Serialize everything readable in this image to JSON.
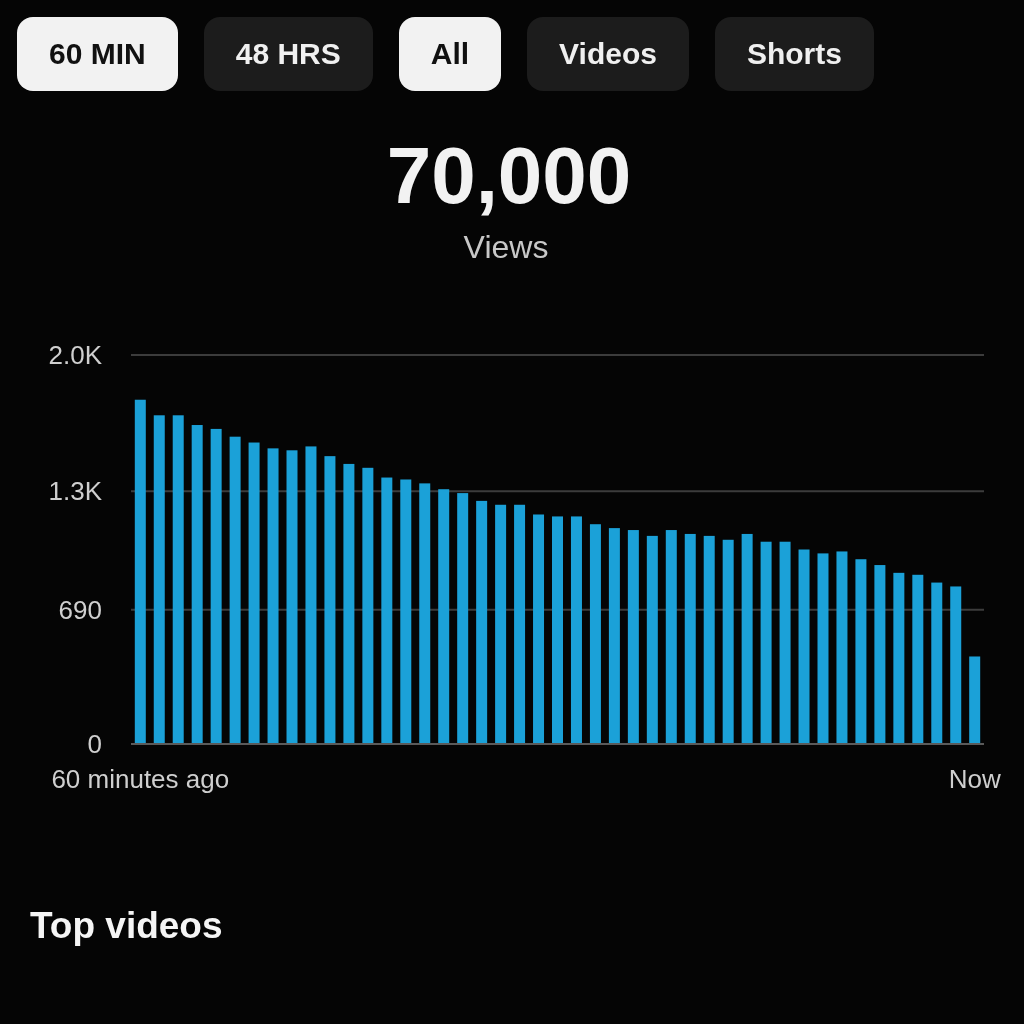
{
  "chart_data": {
    "type": "bar",
    "title": "70,000",
    "subtitle": "Views",
    "categories": [
      "60 minutes ago",
      null,
      null,
      null,
      null,
      null,
      null,
      null,
      null,
      null,
      null,
      null,
      null,
      null,
      null,
      null,
      null,
      null,
      null,
      null,
      null,
      null,
      null,
      null,
      null,
      null,
      null,
      null,
      null,
      null,
      null,
      null,
      null,
      null,
      null,
      null,
      null,
      null,
      null,
      null,
      null,
      null,
      null,
      null,
      "Now"
    ],
    "values": [
      1770,
      1690,
      1690,
      1640,
      1620,
      1580,
      1550,
      1520,
      1510,
      1530,
      1480,
      1440,
      1420,
      1370,
      1360,
      1340,
      1310,
      1290,
      1250,
      1230,
      1230,
      1180,
      1170,
      1170,
      1130,
      1110,
      1100,
      1070,
      1100,
      1080,
      1070,
      1050,
      1080,
      1040,
      1040,
      1000,
      980,
      990,
      950,
      920,
      880,
      870,
      830,
      810,
      450
    ],
    "color": "#1ba1d8",
    "ylim": [
      0,
      2000
    ],
    "yticks": [
      0,
      690,
      {
        "value": 1300,
        "label": "1.3K"
      },
      {
        "value": 2000,
        "label": "2.0K"
      }
    ],
    "grid": "y",
    "annotations": [
      "60 MIN",
      "48 HRS",
      "All",
      "Videos",
      "Shorts",
      "Top videos"
    ]
  }
}
